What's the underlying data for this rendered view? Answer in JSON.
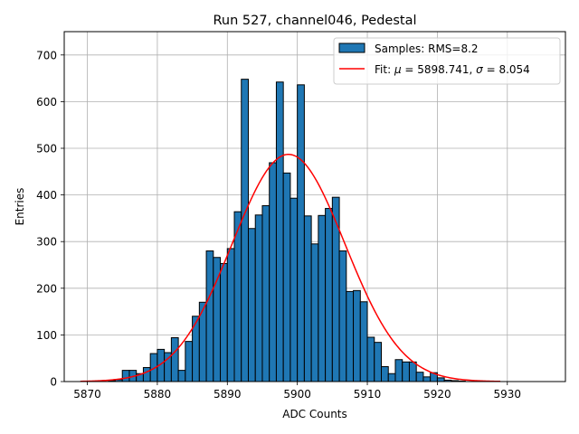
{
  "chart_data": {
    "type": "bar",
    "title": "Run 527, channel046, Pedestal",
    "xlabel": "ADC Counts",
    "ylabel": "Entries",
    "xlim": [
      5866.7,
      5938.3
    ],
    "ylim": [
      0,
      750
    ],
    "xticks": [
      5870,
      5880,
      5890,
      5900,
      5910,
      5920,
      5930
    ],
    "yticks": [
      0,
      100,
      200,
      300,
      400,
      500,
      600,
      700
    ],
    "grid": true,
    "legend_position": "top-right",
    "legend": [
      {
        "label": "Samples: RMS=8.2",
        "kind": "patch"
      },
      {
        "label_prefix": "Fit: ",
        "mu_symbol": "μ",
        "mu_text": " = 5898.741, ",
        "sigma_symbol": "σ",
        "sigma_text": " = 8.054",
        "kind": "line"
      }
    ],
    "histogram": {
      "bin_start": 5869,
      "bin_width": 1,
      "counts": [
        0,
        0,
        0,
        0,
        2,
        4,
        24,
        24,
        17,
        30,
        60,
        69,
        62,
        94,
        24,
        86,
        140,
        170,
        280,
        266,
        253,
        285,
        364,
        648,
        328,
        357,
        377,
        469,
        642,
        447,
        393,
        636,
        355,
        295,
        356,
        371,
        395,
        280,
        193,
        195,
        171,
        95,
        84,
        32,
        17,
        47,
        42,
        42,
        20,
        10,
        19,
        8,
        3,
        2,
        1,
        0,
        0,
        0,
        0,
        0,
        0,
        0,
        0,
        0,
        0,
        0,
        0
      ],
      "color": "#1f77b4",
      "edge_color": "#000000"
    },
    "fit": {
      "mu": 5898.741,
      "sigma": 8.054,
      "amplitude": 487,
      "x_range": [
        5869,
        5929
      ],
      "color": "#ff0000"
    }
  }
}
